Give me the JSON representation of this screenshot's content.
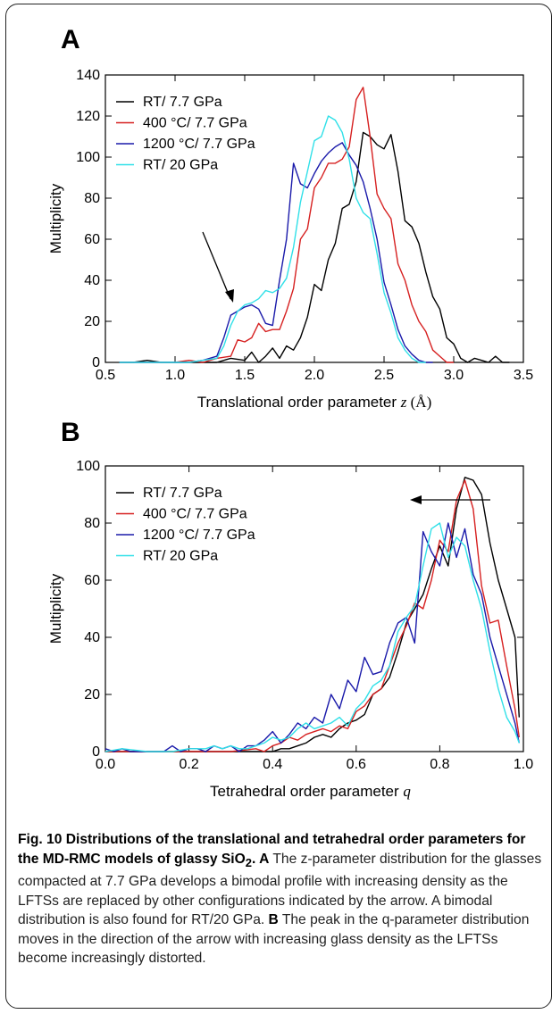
{
  "chart_data": [
    {
      "type": "line",
      "panel": "A",
      "xlabel_text": "Translational order parameter ",
      "xlabel_var": "z",
      "xlabel_unit": " (Å)",
      "ylabel": "Multiplicity",
      "xlim": [
        0.5,
        3.5
      ],
      "ylim": [
        0,
        140
      ],
      "xticks": [
        "0.5",
        "1.0",
        "1.5",
        "2.0",
        "2.5",
        "3.0",
        "3.5"
      ],
      "yticks": [
        "0",
        "20",
        "40",
        "60",
        "80",
        "100",
        "120",
        "140"
      ],
      "legend_position": "top-left",
      "annotation": "arrow pointing to shoulder near z = 1.45",
      "series": [
        {
          "name": "RT/ 7.7 GPa",
          "color": "#000000",
          "x": [
            0.6,
            0.7,
            0.8,
            0.9,
            1.0,
            1.1,
            1.2,
            1.3,
            1.4,
            1.5,
            1.55,
            1.6,
            1.65,
            1.7,
            1.75,
            1.8,
            1.85,
            1.9,
            1.95,
            2.0,
            2.05,
            2.1,
            2.15,
            2.2,
            2.25,
            2.3,
            2.35,
            2.4,
            2.45,
            2.5,
            2.55,
            2.6,
            2.65,
            2.7,
            2.75,
            2.8,
            2.85,
            2.9,
            2.95,
            3.0,
            3.05,
            3.1,
            3.15,
            3.2,
            3.25,
            3.3,
            3.35,
            3.4
          ],
          "y": [
            0,
            0,
            1,
            0,
            0,
            0,
            0,
            0,
            2,
            1,
            5,
            0,
            3,
            7,
            2,
            8,
            6,
            12,
            22,
            38,
            35,
            50,
            58,
            75,
            77,
            88,
            112,
            110,
            106,
            104,
            111,
            93,
            69,
            66,
            58,
            44,
            32,
            26,
            12,
            9,
            2,
            0,
            2,
            1,
            0,
            3,
            0,
            0
          ]
        },
        {
          "name": "400 °C/ 7.7 GPa",
          "color": "#d62020",
          "x": [
            0.6,
            0.9,
            1.0,
            1.1,
            1.2,
            1.3,
            1.4,
            1.45,
            1.5,
            1.55,
            1.6,
            1.65,
            1.7,
            1.75,
            1.8,
            1.85,
            1.9,
            1.95,
            2.0,
            2.05,
            2.1,
            2.15,
            2.2,
            2.25,
            2.3,
            2.35,
            2.4,
            2.45,
            2.5,
            2.55,
            2.6,
            2.65,
            2.7,
            2.75,
            2.8,
            2.85,
            2.9,
            2.95,
            3.0
          ],
          "y": [
            0,
            0,
            0,
            1,
            0,
            2,
            3,
            11,
            10,
            12,
            19,
            15,
            16,
            16,
            25,
            36,
            60,
            65,
            85,
            90,
            97,
            97,
            99,
            105,
            128,
            134,
            110,
            82,
            75,
            70,
            48,
            40,
            28,
            20,
            15,
            6,
            3,
            0,
            0
          ]
        },
        {
          "name": "1200 °C/ 7.7 GPa",
          "color": "#1a1aaa",
          "x": [
            0.6,
            1.0,
            1.1,
            1.2,
            1.3,
            1.35,
            1.4,
            1.45,
            1.5,
            1.55,
            1.6,
            1.65,
            1.7,
            1.75,
            1.8,
            1.85,
            1.9,
            1.95,
            2.0,
            2.05,
            2.1,
            2.15,
            2.2,
            2.25,
            2.3,
            2.35,
            2.4,
            2.45,
            2.5,
            2.55,
            2.6,
            2.65,
            2.7,
            2.75,
            2.8,
            2.85
          ],
          "y": [
            0,
            0,
            0,
            1,
            3,
            12,
            23,
            25,
            27,
            28,
            26,
            19,
            18,
            40,
            60,
            97,
            87,
            85,
            92,
            98,
            102,
            105,
            107,
            101,
            96,
            88,
            75,
            60,
            39,
            28,
            16,
            8,
            4,
            1,
            0,
            0
          ]
        },
        {
          "name": "RT/ 20 GPa",
          "color": "#30e0e8",
          "x": [
            0.6,
            1.0,
            1.1,
            1.2,
            1.3,
            1.35,
            1.4,
            1.45,
            1.5,
            1.55,
            1.6,
            1.65,
            1.7,
            1.75,
            1.8,
            1.85,
            1.9,
            1.95,
            2.0,
            2.05,
            2.1,
            2.15,
            2.2,
            2.25,
            2.3,
            2.35,
            2.4,
            2.45,
            2.5,
            2.55,
            2.6,
            2.65,
            2.7,
            2.75,
            2.8
          ],
          "y": [
            0,
            0,
            0,
            1,
            2,
            8,
            18,
            25,
            28,
            29,
            31,
            35,
            34,
            36,
            41,
            56,
            78,
            93,
            108,
            110,
            120,
            118,
            112,
            99,
            80,
            73,
            70,
            53,
            34,
            24,
            12,
            6,
            2,
            0,
            0
          ]
        }
      ]
    },
    {
      "type": "line",
      "panel": "B",
      "xlabel_text": "Tetrahedral order parameter ",
      "xlabel_var": "q",
      "ylabel": "Multiplicity",
      "xlim": [
        0.0,
        1.0
      ],
      "ylim": [
        0,
        100
      ],
      "xticks": [
        "0.0",
        "0.2",
        "0.4",
        "0.6",
        "0.8",
        "1.0"
      ],
      "yticks": [
        "0",
        "20",
        "40",
        "60",
        "80",
        "100"
      ],
      "legend_position": "top-left",
      "annotation": "arrow pointing left from q = 0.93 to q = 0.75 at y = 88",
      "series": [
        {
          "name": "RT/ 7.7 GPa",
          "color": "#000000",
          "x": [
            0.0,
            0.1,
            0.2,
            0.3,
            0.38,
            0.4,
            0.42,
            0.44,
            0.46,
            0.48,
            0.5,
            0.52,
            0.54,
            0.56,
            0.58,
            0.6,
            0.62,
            0.64,
            0.66,
            0.68,
            0.7,
            0.72,
            0.74,
            0.76,
            0.78,
            0.8,
            0.82,
            0.84,
            0.86,
            0.88,
            0.9,
            0.92,
            0.94,
            0.96,
            0.98,
            0.99
          ],
          "y": [
            0,
            0,
            0,
            0,
            0,
            0,
            1,
            1,
            2,
            3,
            5,
            6,
            5,
            8,
            10,
            11,
            13,
            20,
            22,
            26,
            35,
            45,
            50,
            55,
            64,
            72,
            65,
            85,
            96,
            95,
            90,
            73,
            60,
            50,
            40,
            12
          ]
        },
        {
          "name": "400 °C/ 7.7 GPa",
          "color": "#d62020",
          "x": [
            0.0,
            0.1,
            0.2,
            0.3,
            0.36,
            0.38,
            0.4,
            0.42,
            0.44,
            0.46,
            0.48,
            0.5,
            0.52,
            0.54,
            0.56,
            0.58,
            0.6,
            0.62,
            0.64,
            0.66,
            0.68,
            0.7,
            0.72,
            0.74,
            0.76,
            0.78,
            0.8,
            0.82,
            0.84,
            0.86,
            0.88,
            0.9,
            0.92,
            0.94,
            0.96,
            0.98,
            0.99
          ],
          "y": [
            0,
            0,
            0,
            0,
            1,
            0,
            2,
            3,
            5,
            4,
            6,
            7,
            8,
            7,
            9,
            8,
            14,
            16,
            20,
            22,
            30,
            38,
            44,
            52,
            50,
            60,
            74,
            70,
            88,
            95,
            85,
            58,
            45,
            46,
            30,
            15,
            5
          ]
        },
        {
          "name": "1200 °C/ 7.7 GPa",
          "color": "#1a1aaa",
          "x": [
            0.0,
            0.02,
            0.04,
            0.06,
            0.1,
            0.14,
            0.16,
            0.18,
            0.2,
            0.22,
            0.24,
            0.26,
            0.28,
            0.3,
            0.32,
            0.34,
            0.36,
            0.38,
            0.4,
            0.42,
            0.44,
            0.46,
            0.48,
            0.5,
            0.52,
            0.54,
            0.56,
            0.58,
            0.6,
            0.62,
            0.64,
            0.66,
            0.68,
            0.7,
            0.72,
            0.74,
            0.76,
            0.78,
            0.8,
            0.82,
            0.84,
            0.86,
            0.88,
            0.9,
            0.92,
            0.94,
            0.96,
            0.98,
            0.99
          ],
          "y": [
            1,
            0,
            1,
            0,
            0,
            0,
            2,
            0,
            1,
            1,
            0,
            2,
            1,
            2,
            0,
            2,
            2,
            4,
            7,
            3,
            6,
            10,
            8,
            12,
            10,
            20,
            15,
            25,
            21,
            33,
            27,
            28,
            38,
            45,
            47,
            38,
            77,
            70,
            65,
            80,
            68,
            78,
            62,
            55,
            40,
            30,
            20,
            10,
            3
          ]
        },
        {
          "name": "RT/ 20 GPa",
          "color": "#30e0e8",
          "x": [
            0.0,
            0.04,
            0.1,
            0.16,
            0.2,
            0.24,
            0.26,
            0.28,
            0.3,
            0.32,
            0.34,
            0.36,
            0.38,
            0.4,
            0.42,
            0.44,
            0.46,
            0.48,
            0.5,
            0.52,
            0.54,
            0.56,
            0.58,
            0.6,
            0.62,
            0.64,
            0.66,
            0.68,
            0.7,
            0.72,
            0.74,
            0.76,
            0.78,
            0.8,
            0.82,
            0.84,
            0.86,
            0.88,
            0.9,
            0.92,
            0.94,
            0.96,
            0.98,
            0.99
          ],
          "y": [
            0,
            1,
            0,
            0,
            1,
            1,
            2,
            1,
            2,
            1,
            1,
            2,
            3,
            5,
            4,
            5,
            8,
            10,
            8,
            9,
            10,
            12,
            9,
            15,
            18,
            23,
            25,
            30,
            42,
            47,
            51,
            65,
            78,
            80,
            68,
            75,
            72,
            60,
            50,
            35,
            22,
            12,
            7,
            3
          ]
        }
      ]
    }
  ],
  "caption": {
    "title_start": "Fig. 10 Distributions of the translational and tetrahedral order parameters for the MD-RMC models of glassy SiO",
    "title_sub": "2",
    "title_end": ". ",
    "letter_a": "A",
    "text_a": " The z-parameter distribution for the glasses compacted at 7.7 GPa develops a bimodal profile with increasing density as the LFTSs are replaced by other configurations indicated by the arrow. A bimodal distribution is also found for RT/20 GPa. ",
    "letter_b": "B",
    "text_b": " The peak in the q-parameter distribution moves in the direction of the arrow with increasing glass density as the LFTSs become increasingly distorted."
  }
}
